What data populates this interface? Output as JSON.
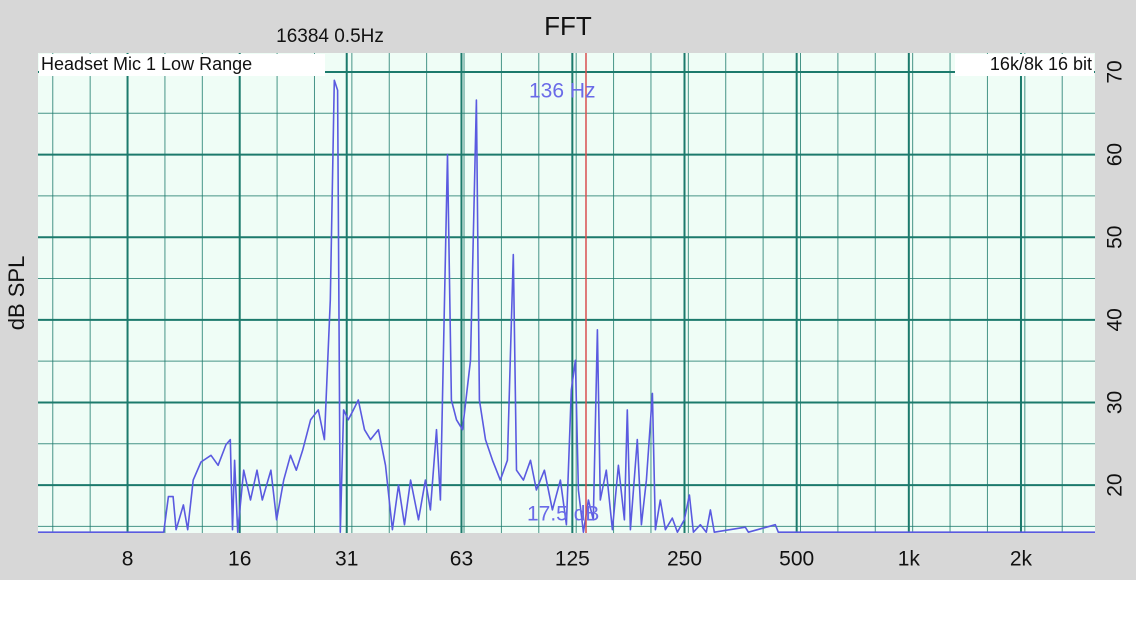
{
  "chart_data": {
    "type": "line",
    "title": "FFT",
    "subtitle": "16384  0.5Hz",
    "source_label": "Headset Mic 1 Low Range",
    "format_label": "16k/8k 16 bit",
    "y_label": "dB SPL",
    "x_scale": "log",
    "grid": true,
    "minor_grid": true,
    "xlim": [
      4.6,
      3160
    ],
    "ylim": [
      14.2,
      72.3
    ],
    "xticks": [
      8,
      16,
      31,
      63,
      125,
      250,
      500,
      {
        "value": 1000,
        "label": "1k"
      },
      {
        "value": 2000,
        "label": "2k"
      }
    ],
    "yticks": [
      20,
      30,
      40,
      50,
      60,
      70
    ],
    "cursor": {
      "x": 136,
      "x_label": "136 Hz",
      "y": 17.5,
      "y_label": "17.5 dB",
      "color": "#d85050"
    },
    "series": [
      {
        "color": "#5a5ae0",
        "x": [
          4.6,
          10.0,
          10.3,
          10.6,
          10.8,
          11.3,
          11.6,
          12.0,
          12.6,
          13.4,
          14.0,
          14.7,
          15.1,
          15.3,
          15.5,
          15.8,
          16.4,
          17.1,
          17.8,
          18.4,
          19.4,
          20.1,
          21.0,
          21.9,
          22.7,
          23.6,
          24.8,
          26.0,
          27.0,
          28.0,
          28.7,
          29.3,
          29.8,
          30.4,
          31.3,
          32.3,
          33.3,
          34.6,
          35.9,
          37.7,
          39.4,
          41.1,
          42.7,
          44.3,
          46.0,
          48.3,
          50.4,
          52.0,
          54.0,
          55.3,
          57.8,
          59.2,
          61.1,
          63.4,
          66.6,
          69.1,
          70.4,
          73.1,
          76.3,
          80.1,
          83.7,
          86.8,
          88.5,
          92.4,
          96.5,
          100.1,
          105.2,
          110.5,
          116.1,
          120.5,
          124.2,
          127.4,
          129.8,
          133.8,
          138.0,
          142.3,
          145.9,
          148.6,
          154.2,
          160.1,
          166.2,
          172.4,
          175.6,
          178.9,
          186.8,
          191.5,
          197.5,
          205.0,
          208.8,
          215.3,
          222.1,
          231.8,
          239.2,
          249.7,
          257.6,
          264.1,
          275.8,
          286.1,
          293.3,
          300.6,
          364.1,
          371.0,
          438.1,
          446.3,
          3160
        ],
        "values": [
          14.3,
          14.3,
          18.6,
          18.6,
          14.6,
          17.6,
          14.6,
          20.6,
          22.8,
          23.6,
          22.4,
          24.9,
          25.5,
          14.6,
          23.0,
          14.3,
          21.8,
          18.2,
          21.8,
          18.2,
          21.8,
          15.8,
          20.6,
          23.6,
          21.8,
          24.2,
          27.9,
          29.1,
          25.5,
          42.4,
          69.0,
          67.8,
          14.3,
          29.1,
          27.9,
          29.1,
          30.3,
          26.7,
          25.5,
          26.7,
          22.4,
          14.6,
          20.0,
          15.2,
          20.6,
          15.8,
          20.6,
          17.0,
          26.7,
          18.2,
          60.0,
          30.3,
          27.9,
          26.7,
          35.1,
          66.6,
          30.3,
          25.5,
          23.0,
          20.6,
          23.0,
          47.9,
          21.8,
          20.6,
          23.0,
          19.4,
          21.8,
          17.0,
          20.6,
          15.2,
          31.5,
          35.1,
          19.4,
          14.3,
          18.2,
          15.8,
          38.8,
          18.2,
          21.8,
          14.6,
          22.4,
          15.8,
          29.1,
          14.6,
          25.5,
          15.2,
          20.6,
          31.1,
          14.6,
          18.2,
          14.6,
          16.0,
          14.3,
          15.8,
          18.8,
          14.3,
          15.2,
          14.3,
          17.0,
          14.3,
          14.9,
          14.3,
          15.2,
          14.3,
          14.3
        ]
      }
    ]
  }
}
